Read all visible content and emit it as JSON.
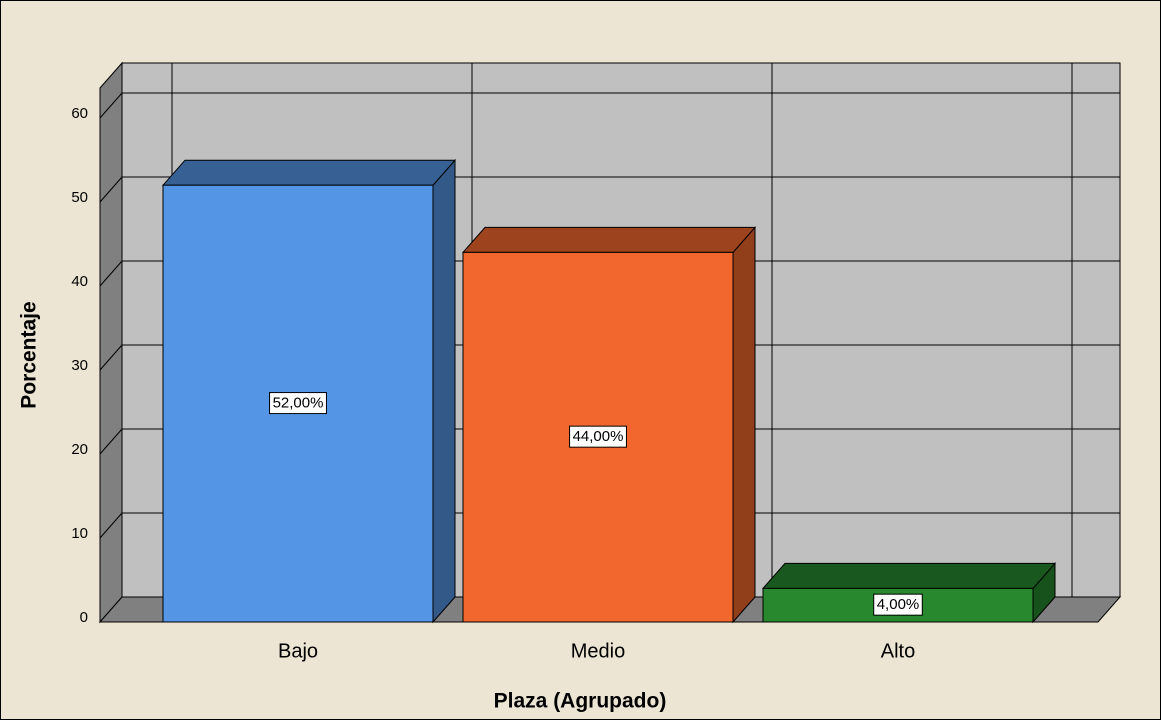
{
  "chart_data": {
    "type": "bar3d",
    "x_label": "Plaza (Agrupado)",
    "y_label": "Porcentaje",
    "categories": [
      "Bajo",
      "Medio",
      "Alto"
    ],
    "values": [
      52,
      44,
      4
    ],
    "value_labels": [
      "52,00%",
      "44,00%",
      "4,00%"
    ],
    "colors": [
      "#5595e5",
      "#f2672d",
      "#27882e"
    ],
    "ylim": [
      0,
      60
    ],
    "yticks": [
      0,
      10,
      20,
      30,
      40,
      50,
      60
    ],
    "grid": true
  }
}
